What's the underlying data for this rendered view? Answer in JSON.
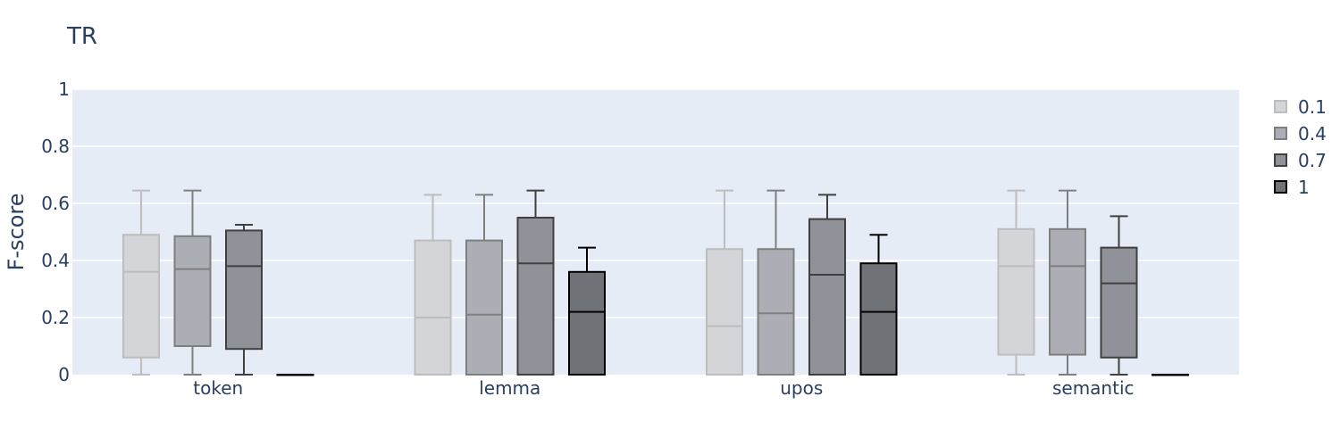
{
  "chart_data": {
    "type": "box",
    "title": "TR",
    "xlabel": "",
    "ylabel": "F-score",
    "ylim": [
      0,
      1
    ],
    "yticks": [
      0,
      0.2,
      0.4,
      0.6,
      0.8,
      1
    ],
    "ytick_labels": [
      "0",
      "0.2",
      "0.4",
      "0.6",
      "0.8",
      "1"
    ],
    "categories": [
      "token",
      "lemma",
      "upos",
      "semantic"
    ],
    "grid": true,
    "legend_position": "top-right",
    "series": [
      {
        "name": "0.1",
        "fill": "#d3d5d9",
        "stroke": "#bdbdbd",
        "boxes": [
          {
            "min": 0,
            "q1": 0.06,
            "median": 0.36,
            "q3": 0.49,
            "max": 0.645
          },
          {
            "min": 0,
            "q1": 0,
            "median": 0.2,
            "q3": 0.47,
            "max": 0.63
          },
          {
            "min": 0,
            "q1": 0,
            "median": 0.17,
            "q3": 0.44,
            "max": 0.645
          },
          {
            "min": 0,
            "q1": 0.07,
            "median": 0.38,
            "q3": 0.51,
            "max": 0.645
          }
        ]
      },
      {
        "name": "0.4",
        "fill": "#abaeb4",
        "stroke": "#7f7f7f",
        "boxes": [
          {
            "min": 0,
            "q1": 0.1,
            "median": 0.37,
            "q3": 0.485,
            "max": 0.645
          },
          {
            "min": 0,
            "q1": 0,
            "median": 0.21,
            "q3": 0.47,
            "max": 0.63
          },
          {
            "min": 0,
            "q1": 0,
            "median": 0.215,
            "q3": 0.44,
            "max": 0.645
          },
          {
            "min": 0,
            "q1": 0.07,
            "median": 0.38,
            "q3": 0.51,
            "max": 0.645
          }
        ]
      },
      {
        "name": "0.7",
        "fill": "#8f9298",
        "stroke": "#404040",
        "boxes": [
          {
            "min": 0,
            "q1": 0.09,
            "median": 0.38,
            "q3": 0.505,
            "max": 0.525
          },
          {
            "min": 0,
            "q1": 0,
            "median": 0.39,
            "q3": 0.55,
            "max": 0.645
          },
          {
            "min": 0,
            "q1": 0,
            "median": 0.35,
            "q3": 0.545,
            "max": 0.63
          },
          {
            "min": 0,
            "q1": 0.06,
            "median": 0.32,
            "q3": 0.445,
            "max": 0.555
          }
        ]
      },
      {
        "name": "1",
        "fill": "#6f7277",
        "stroke": "#000000",
        "boxes": [
          {
            "min": 0,
            "q1": 0,
            "median": 0,
            "q3": 0,
            "max": 0
          },
          {
            "min": 0,
            "q1": 0,
            "median": 0.22,
            "q3": 0.36,
            "max": 0.445
          },
          {
            "min": 0,
            "q1": 0,
            "median": 0.22,
            "q3": 0.39,
            "max": 0.49
          },
          {
            "min": 0,
            "q1": 0,
            "median": 0,
            "q3": 0,
            "max": 0
          }
        ]
      }
    ]
  }
}
